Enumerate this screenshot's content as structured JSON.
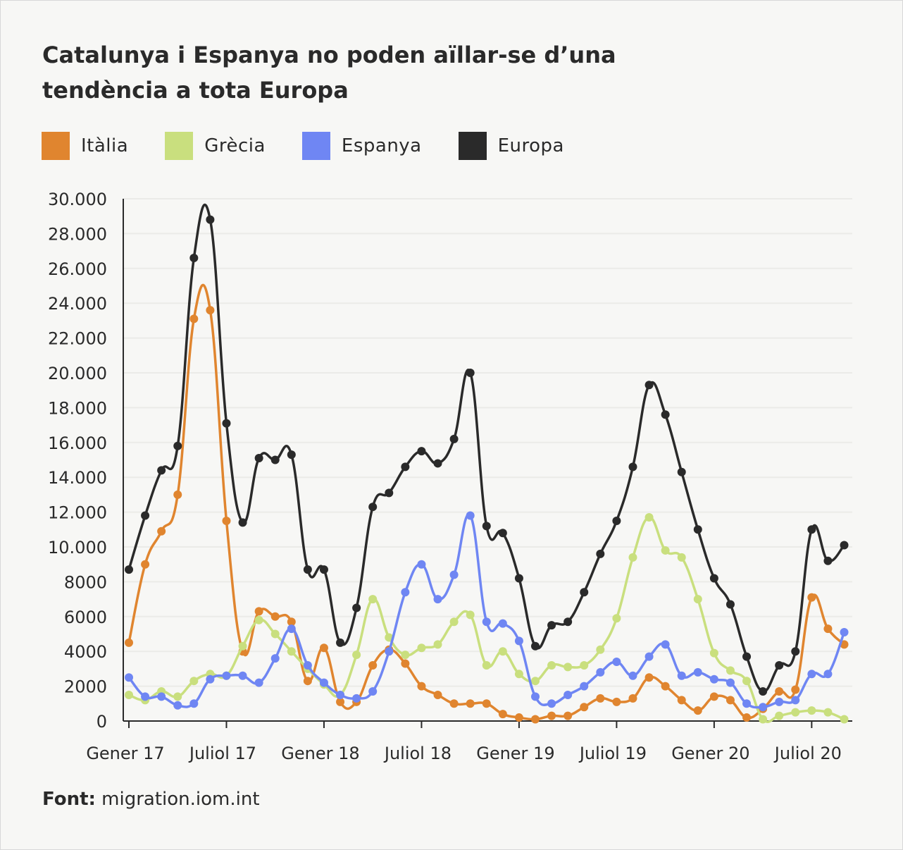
{
  "chart_data": {
    "type": "line",
    "title": "Catalunya i Espanya no poden aïllar-se d’una tendència a tota Europa",
    "xlabel": "",
    "ylabel": "",
    "ylim": [
      0,
      30000
    ],
    "yticks": [
      0,
      2000,
      4000,
      6000,
      8000,
      10000,
      12000,
      14000,
      16000,
      18000,
      20000,
      22000,
      24000,
      26000,
      28000,
      30000
    ],
    "ytick_labels": [
      "0",
      "2000",
      "4000",
      "6000",
      "8000",
      "10.000",
      "12.000",
      "14.000",
      "16.000",
      "18.000",
      "20.000",
      "22.000",
      "24.000",
      "26.000",
      "28.000",
      "30.000"
    ],
    "x_start": "Gener 17",
    "x_unit": "month",
    "xtick_labels": [
      "Gener 17",
      "Juliol 17",
      "Gener 18",
      "Juliol 18",
      "Gener 19",
      "Juliol 19",
      "Gener 20",
      "Juliol 20"
    ],
    "grid": "horizontal",
    "legend_position": "top",
    "series": [
      {
        "name": "Itàlia",
        "color": "#e0852f",
        "values": [
          4500,
          9000,
          10900,
          13000,
          23100,
          23600,
          11500,
          4000,
          6300,
          6000,
          5700,
          2300,
          4200,
          1100,
          1100,
          3200,
          4100,
          3300,
          2000,
          1500,
          1000,
          1000,
          1000,
          400,
          200,
          100,
          300,
          300,
          800,
          1300,
          1100,
          1300,
          2500,
          2000,
          1200,
          600,
          1400,
          1200,
          200,
          700,
          1700,
          1800,
          7100,
          5300,
          4400
        ]
      },
      {
        "name": "Grècia",
        "color": "#c9df7e",
        "values": [
          1500,
          1200,
          1700,
          1400,
          2300,
          2700,
          2600,
          4300,
          5800,
          5000,
          4000,
          3000,
          2100,
          1500,
          3800,
          7000,
          4800,
          3800,
          4200,
          4400,
          5700,
          6100,
          3200,
          4000,
          2700,
          2300,
          3200,
          3100,
          3200,
          4100,
          5900,
          9400,
          11700,
          9800,
          9400,
          7000,
          3900,
          2900,
          2300,
          100,
          300,
          500,
          600,
          500,
          100
        ]
      },
      {
        "name": "Espanya",
        "color": "#6f86f3",
        "values": [
          2500,
          1400,
          1400,
          900,
          1000,
          2400,
          2600,
          2600,
          2200,
          3600,
          5300,
          3200,
          2200,
          1500,
          1300,
          1700,
          4000,
          7400,
          9000,
          7000,
          8400,
          11800,
          5700,
          5600,
          4600,
          1400,
          1000,
          1500,
          2000,
          2800,
          3400,
          2600,
          3700,
          4400,
          2600,
          2800,
          2400,
          2200,
          1000,
          800,
          1100,
          1200,
          2700,
          2700,
          5100
        ]
      },
      {
        "name": "Europa",
        "color": "#2a2a2a",
        "values": [
          8700,
          11800,
          14400,
          15800,
          26600,
          28800,
          17100,
          11400,
          15100,
          15000,
          15300,
          8700,
          8700,
          4500,
          6500,
          12300,
          13100,
          14600,
          15500,
          14800,
          16200,
          20000,
          11200,
          10800,
          8200,
          4300,
          5500,
          5700,
          7400,
          9600,
          11500,
          14600,
          19300,
          17600,
          14300,
          11000,
          8200,
          6700,
          3700,
          1700,
          3200,
          4000,
          11000,
          9200,
          10100
        ]
      }
    ]
  },
  "source": {
    "label": "Font:",
    "text": "migration.iom.int"
  }
}
